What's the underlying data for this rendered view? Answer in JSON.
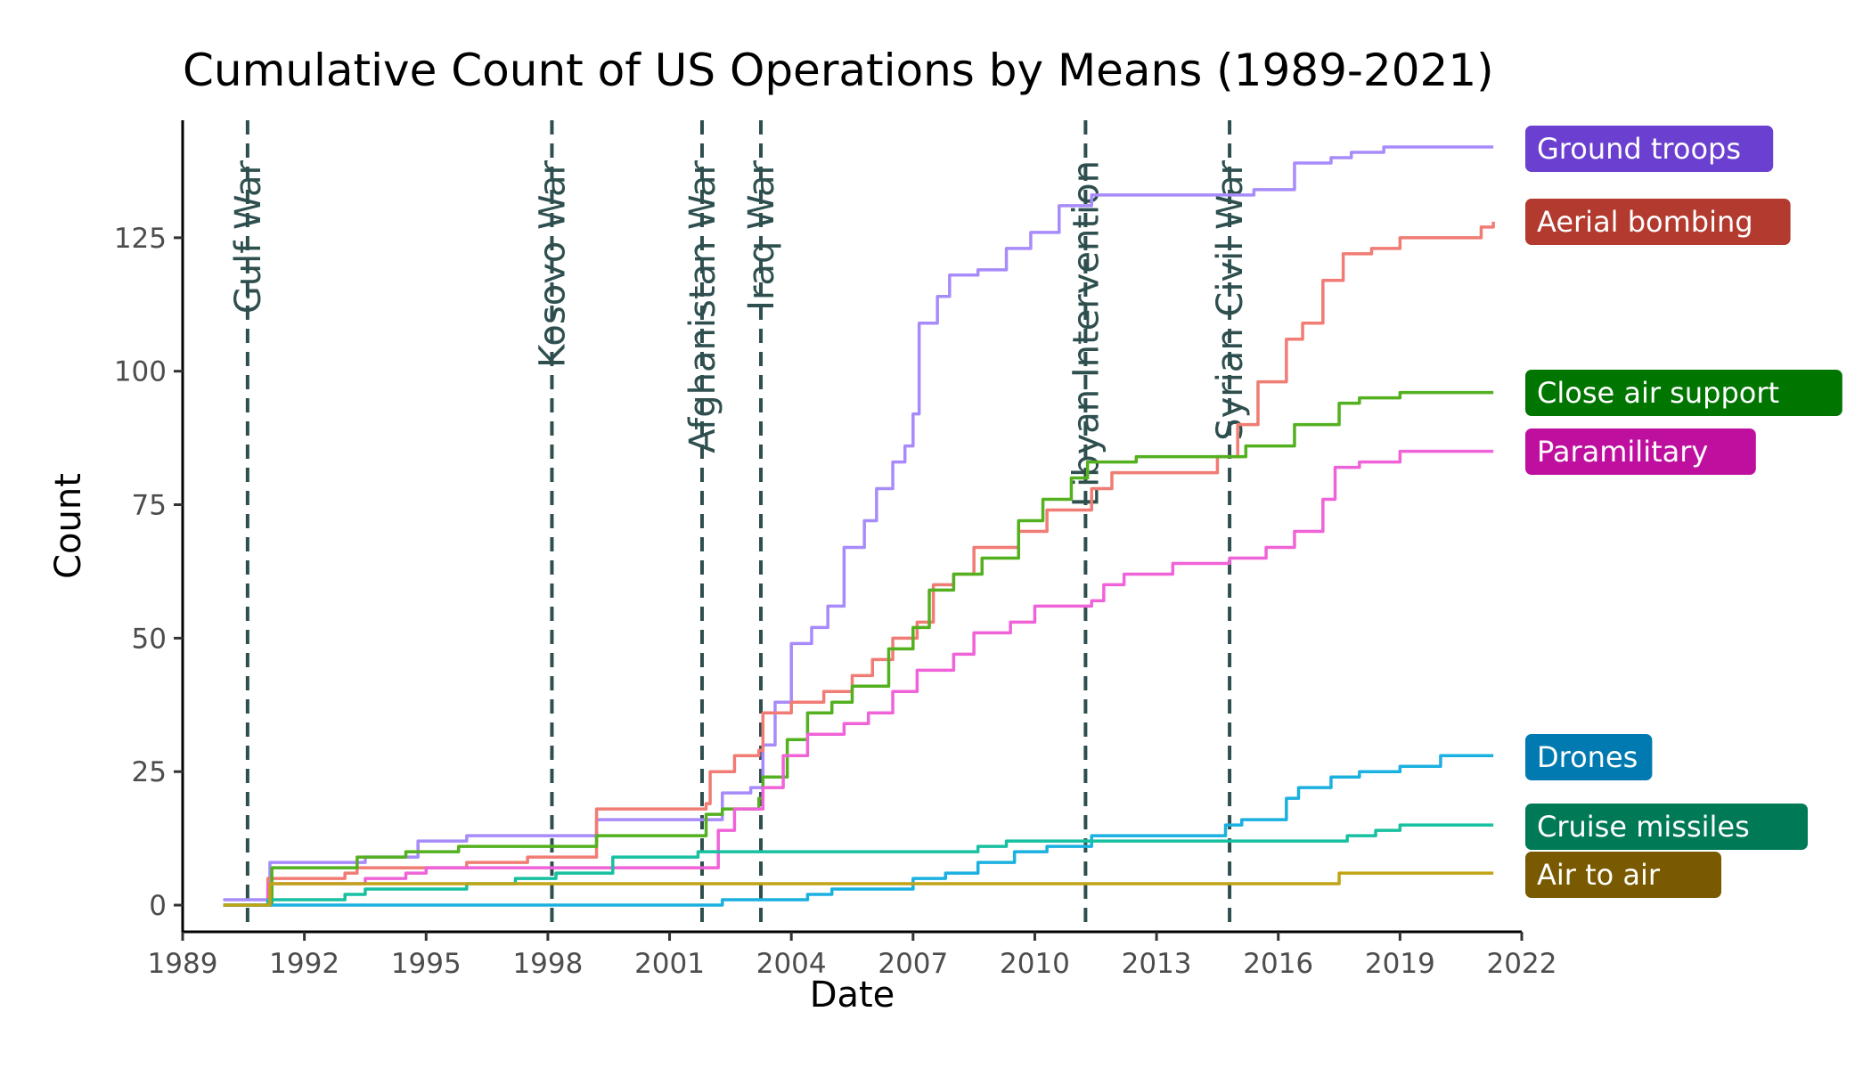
{
  "chart_data": {
    "type": "line",
    "title": "Cumulative Count of US Operations by Means (1989-2021)",
    "xlabel": "Date",
    "ylabel": "Count",
    "xlim": [
      1989,
      2022
    ],
    "ylim": [
      -5,
      147
    ],
    "xticks": [
      1989,
      1992,
      1995,
      1998,
      2001,
      2004,
      2007,
      2010,
      2013,
      2016,
      2019,
      2022
    ],
    "yticks": [
      0,
      25,
      50,
      75,
      100,
      125
    ],
    "grid": false,
    "legend": "direct labels at right end",
    "events": [
      {
        "label": "Gulf War",
        "x": 1990.6
      },
      {
        "label": "Kosovo War",
        "x": 1998.1
      },
      {
        "label": "Afghanistan War",
        "x": 2001.8
      },
      {
        "label": "Iraq War",
        "x": 2003.25
      },
      {
        "label": "Libyan Intervention",
        "x": 2011.25
      },
      {
        "label": "Syrian Civil War",
        "x": 2014.8
      }
    ],
    "series": [
      {
        "name": "Ground troops",
        "color": "#a78bfa",
        "label_bg": "#6b3fcf",
        "points": [
          [
            1990,
            1
          ],
          [
            1991.1,
            1
          ],
          [
            1991.15,
            8
          ],
          [
            1993.5,
            9
          ],
          [
            1994.8,
            12
          ],
          [
            1996,
            13
          ],
          [
            1999,
            13
          ],
          [
            1999.2,
            16
          ],
          [
            2001.8,
            16
          ],
          [
            2002.3,
            21
          ],
          [
            2003,
            22
          ],
          [
            2003.3,
            30
          ],
          [
            2003.6,
            38
          ],
          [
            2004,
            49
          ],
          [
            2004.5,
            52
          ],
          [
            2004.9,
            56
          ],
          [
            2005.3,
            67
          ],
          [
            2005.8,
            72
          ],
          [
            2006.1,
            78
          ],
          [
            2006.5,
            83
          ],
          [
            2006.8,
            86
          ],
          [
            2007,
            92
          ],
          [
            2007.15,
            109
          ],
          [
            2007.6,
            114
          ],
          [
            2007.9,
            118
          ],
          [
            2008.6,
            119
          ],
          [
            2009.3,
            123
          ],
          [
            2009.9,
            126
          ],
          [
            2010.6,
            131
          ],
          [
            2011.4,
            133
          ],
          [
            2015.4,
            134
          ],
          [
            2016.1,
            134
          ],
          [
            2016.4,
            139
          ],
          [
            2017.3,
            140
          ],
          [
            2017.8,
            141
          ],
          [
            2018.6,
            142
          ],
          [
            2021.3,
            142
          ]
        ]
      },
      {
        "name": "Aerial bombing",
        "color": "#f07c74",
        "label_bg": "#b33a2e",
        "points": [
          [
            1990,
            0
          ],
          [
            1991,
            0
          ],
          [
            1991.1,
            5
          ],
          [
            1993,
            6
          ],
          [
            1993.3,
            7
          ],
          [
            1996,
            8
          ],
          [
            1997.5,
            9
          ],
          [
            1998.2,
            9
          ],
          [
            1999.2,
            18
          ],
          [
            2001.9,
            19
          ],
          [
            2002,
            25
          ],
          [
            2002.6,
            28
          ],
          [
            2003.2,
            29
          ],
          [
            2003.3,
            36
          ],
          [
            2004,
            38
          ],
          [
            2004.8,
            40
          ],
          [
            2005.5,
            43
          ],
          [
            2006,
            46
          ],
          [
            2006.5,
            50
          ],
          [
            2007.1,
            53
          ],
          [
            2007.5,
            60
          ],
          [
            2008,
            62
          ],
          [
            2008.5,
            67
          ],
          [
            2009.6,
            70
          ],
          [
            2010.3,
            74
          ],
          [
            2011.4,
            78
          ],
          [
            2011.9,
            81
          ],
          [
            2013.6,
            81
          ],
          [
            2014.5,
            84
          ],
          [
            2015,
            90
          ],
          [
            2015.5,
            98
          ],
          [
            2016.2,
            106
          ],
          [
            2016.6,
            109
          ],
          [
            2017.1,
            117
          ],
          [
            2017.6,
            122
          ],
          [
            2018.3,
            123
          ],
          [
            2019,
            125
          ],
          [
            2021,
            127
          ],
          [
            2021.3,
            128
          ]
        ]
      },
      {
        "name": "Close air support",
        "color": "#53b01f",
        "label_bg": "#007500",
        "points": [
          [
            1990,
            0
          ],
          [
            1991.1,
            0
          ],
          [
            1991.2,
            7
          ],
          [
            1993,
            7
          ],
          [
            1993.3,
            9
          ],
          [
            1994.5,
            10
          ],
          [
            1995.8,
            11
          ],
          [
            1999.2,
            13
          ],
          [
            2001.8,
            13
          ],
          [
            2001.9,
            17
          ],
          [
            2002.3,
            18
          ],
          [
            2003.2,
            20
          ],
          [
            2003.3,
            24
          ],
          [
            2003.9,
            31
          ],
          [
            2004.4,
            36
          ],
          [
            2005,
            38
          ],
          [
            2005.5,
            41
          ],
          [
            2006.4,
            48
          ],
          [
            2007,
            52
          ],
          [
            2007.4,
            59
          ],
          [
            2008,
            62
          ],
          [
            2008.7,
            65
          ],
          [
            2009.6,
            72
          ],
          [
            2010.2,
            76
          ],
          [
            2010.9,
            80
          ],
          [
            2011.3,
            83
          ],
          [
            2012.5,
            84
          ],
          [
            2014.6,
            84
          ],
          [
            2015.2,
            86
          ],
          [
            2016.4,
            90
          ],
          [
            2017.2,
            90
          ],
          [
            2017.5,
            94
          ],
          [
            2018,
            95
          ],
          [
            2019,
            96
          ],
          [
            2021.3,
            96
          ]
        ]
      },
      {
        "name": "Paramilitary",
        "color": "#f063d8",
        "label_bg": "#bf0f9e",
        "points": [
          [
            1990,
            0
          ],
          [
            1991,
            0
          ],
          [
            1991.1,
            4
          ],
          [
            1993.5,
            5
          ],
          [
            1994.5,
            6
          ],
          [
            1995,
            7
          ],
          [
            2001.8,
            7
          ],
          [
            2002.2,
            14
          ],
          [
            2002.6,
            18
          ],
          [
            2003.3,
            22
          ],
          [
            2003.8,
            28
          ],
          [
            2004.4,
            32
          ],
          [
            2005.3,
            34
          ],
          [
            2005.9,
            36
          ],
          [
            2006.5,
            40
          ],
          [
            2007.1,
            44
          ],
          [
            2008,
            47
          ],
          [
            2008.5,
            51
          ],
          [
            2009.4,
            53
          ],
          [
            2010,
            56
          ],
          [
            2011.4,
            57
          ],
          [
            2011.7,
            60
          ],
          [
            2012.2,
            62
          ],
          [
            2013.4,
            64
          ],
          [
            2014.8,
            65
          ],
          [
            2015.7,
            67
          ],
          [
            2016.4,
            70
          ],
          [
            2017.1,
            76
          ],
          [
            2017.4,
            82
          ],
          [
            2018,
            83
          ],
          [
            2019,
            85
          ],
          [
            2021.3,
            85
          ]
        ]
      },
      {
        "name": "Drones",
        "color": "#1ab0e0",
        "label_bg": "#007ab0",
        "points": [
          [
            1990,
            0
          ],
          [
            2001.2,
            0
          ],
          [
            2002.3,
            1
          ],
          [
            2003.4,
            1
          ],
          [
            2004.4,
            2
          ],
          [
            2005,
            3
          ],
          [
            2006.8,
            3
          ],
          [
            2007,
            5
          ],
          [
            2007.8,
            6
          ],
          [
            2008.6,
            8
          ],
          [
            2009.5,
            10
          ],
          [
            2010.3,
            11
          ],
          [
            2011.4,
            13
          ],
          [
            2013.7,
            13
          ],
          [
            2014.7,
            15
          ],
          [
            2015.1,
            16
          ],
          [
            2016.2,
            20
          ],
          [
            2016.5,
            22
          ],
          [
            2017.3,
            24
          ],
          [
            2018,
            25
          ],
          [
            2019,
            26
          ],
          [
            2020,
            28
          ],
          [
            2021.3,
            28
          ]
        ]
      },
      {
        "name": "Cruise missiles",
        "color": "#17c0a0",
        "label_bg": "#007a56",
        "points": [
          [
            1990,
            0
          ],
          [
            1991.1,
            1
          ],
          [
            1993,
            2
          ],
          [
            1993.5,
            3
          ],
          [
            1996,
            4
          ],
          [
            1997.2,
            5
          ],
          [
            1998.2,
            6
          ],
          [
            1999.6,
            9
          ],
          [
            2001.7,
            10
          ],
          [
            2008.2,
            10
          ],
          [
            2008.6,
            11
          ],
          [
            2009.3,
            12
          ],
          [
            2016,
            12
          ],
          [
            2017.4,
            12
          ],
          [
            2017.7,
            13
          ],
          [
            2018.4,
            14
          ],
          [
            2019,
            15
          ],
          [
            2021.3,
            15
          ]
        ]
      },
      {
        "name": "Air to air",
        "color": "#c1a316",
        "label_bg": "#7a5a00",
        "points": [
          [
            1990,
            0
          ],
          [
            1991.1,
            0
          ],
          [
            1991.15,
            4
          ],
          [
            2017.3,
            4
          ],
          [
            2017.5,
            6
          ],
          [
            2021.3,
            6
          ]
        ]
      }
    ]
  }
}
